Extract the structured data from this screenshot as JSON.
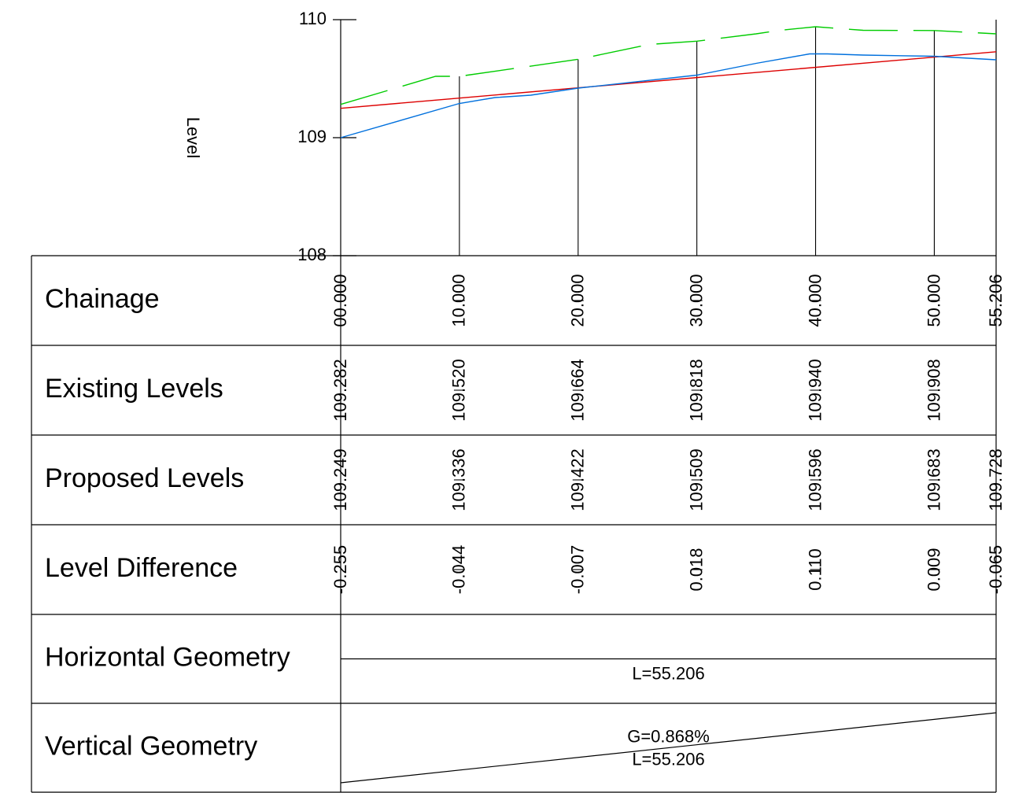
{
  "chart_data": {
    "type": "line",
    "ylabel": "Level",
    "ylim": [
      108,
      110
    ],
    "xlim": [
      0,
      55.206
    ],
    "y_ticks": [
      "110",
      "109",
      "108"
    ],
    "grid": false,
    "series": [
      {
        "key": "existing",
        "color": "#00cc00",
        "dashed": true,
        "x": [
          0,
          8,
          10,
          20,
          26,
          30,
          35,
          37,
          40,
          44,
          50,
          55.206
        ],
        "y": [
          109.282,
          109.52,
          109.52,
          109.664,
          109.79,
          109.818,
          109.88,
          109.91,
          109.94,
          109.91,
          109.908,
          109.88
        ]
      },
      {
        "key": "proposed",
        "color": "#dd0000",
        "dashed": false,
        "x": [
          0,
          55.206
        ],
        "y": [
          109.249,
          109.728
        ]
      },
      {
        "key": "design",
        "color": "#0070dd",
        "dashed": false,
        "x": [
          0,
          10,
          13,
          16,
          20,
          30,
          35,
          39.5,
          41,
          44,
          50,
          55.206
        ],
        "y": [
          109.0,
          109.29,
          109.34,
          109.36,
          109.42,
          109.53,
          109.63,
          109.71,
          109.71,
          109.7,
          109.69,
          109.66
        ]
      }
    ],
    "stations": [
      0,
      10,
      20,
      30,
      40,
      50,
      55.206
    ]
  },
  "band_table": {
    "rows": [
      {
        "key": "chainage",
        "label": "Chainage",
        "values": [
          "00.000",
          "10.000",
          "20.000",
          "30.000",
          "40.000",
          "50.000",
          "55.206"
        ]
      },
      {
        "key": "existing",
        "label": "Existing Levels",
        "values": [
          "109.282",
          "109.520",
          "109.664",
          "109.818",
          "109.940",
          "109.908",
          ""
        ]
      },
      {
        "key": "proposed",
        "label": "Proposed Levels",
        "values": [
          "109.249",
          "109.336",
          "109.422",
          "109.509",
          "109.596",
          "109.683",
          "109.728"
        ]
      },
      {
        "key": "difference",
        "label": "Level Difference",
        "values": [
          "-0.255",
          "-0.044",
          "-0.007",
          "0.018",
          "0.110",
          "0.009",
          "-0.065"
        ]
      },
      {
        "key": "horizontal",
        "label": "Horizontal Geometry",
        "values": []
      },
      {
        "key": "vertical",
        "label": "Vertical Geometry",
        "values": []
      }
    ],
    "horizontal_geometry": {
      "length_label": "L=55.206"
    },
    "vertical_geometry": {
      "grade_label": "G=0.868%",
      "length_label": "L=55.206",
      "start_level": 109.249,
      "end_level": 109.728
    }
  }
}
